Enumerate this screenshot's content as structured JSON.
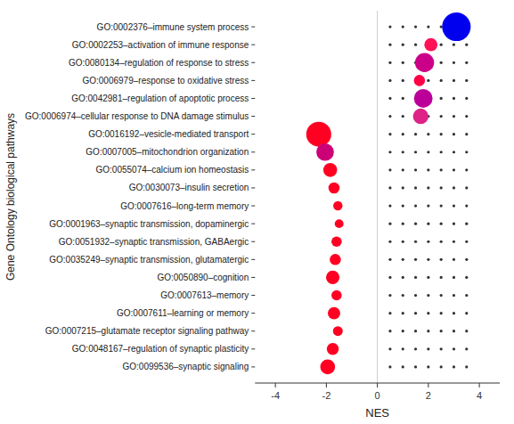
{
  "chart_data": {
    "type": "bubble",
    "orientation": "horizontal",
    "categories": [
      "GO:0002376–immune system process",
      "GO:0002253–activation of immune response",
      "GO:0080134–regulation of response to stress",
      "GO:0006979–response to oxidative stress",
      "GO:0042981–regulation of apoptotic process",
      "GO:0006974–cellular response to DNA damage stimulus",
      "GO:0016192–vesicle-mediated transport",
      "GO:0007005–mitochondrion organization",
      "GO:0055074–calcium ion homeostasis",
      "GO:0030073–insulin secretion",
      "GO:0007616–long-term memory",
      "GO:0001963–synaptic transmission, dopaminergic",
      "GO:0051932–synaptic transmission, GABAergic",
      "GO:0035249–synaptic transmission, glutamatergic",
      "GO:0050890–cognition",
      "GO:0007613–memory",
      "GO:0007611–learning or memory",
      "GO:0007215–glutamate receptor signaling pathway",
      "GO:0048167–regulation of synaptic plasticity",
      "GO:0099536–synaptic signaling"
    ],
    "values": [
      3.1,
      2.1,
      1.85,
      1.65,
      1.8,
      1.7,
      -2.3,
      -2.05,
      -1.85,
      -1.7,
      -1.55,
      -1.5,
      -1.6,
      -1.65,
      -1.75,
      -1.6,
      -1.7,
      -1.55,
      -1.75,
      -1.95
    ],
    "sizes": [
      850,
      180,
      380,
      130,
      360,
      250,
      650,
      320,
      200,
      130,
      90,
      80,
      110,
      130,
      190,
      110,
      160,
      100,
      150,
      230
    ],
    "colors": [
      "#0000ee",
      "#ff1155",
      "#cc0088",
      "#ff0044",
      "#bb0099",
      "#dd2288",
      "#ff0022",
      "#cc0077",
      "#ff0022",
      "#ff0022",
      "#ff0022",
      "#ff0022",
      "#ff0022",
      "#ff0022",
      "#ff0022",
      "#ff0022",
      "#ff0022",
      "#ff0022",
      "#ff0022",
      "#ff0022"
    ],
    "small_dot_x": [
      0.5,
      1.0,
      1.5,
      2.0,
      2.5,
      3.0,
      3.5
    ],
    "small_dot_color": "#333333",
    "reference_x": 0,
    "xlabel": "NES",
    "ylabel": "Gene Ontology biological pathways",
    "xlim": [
      -4.8,
      4.8
    ],
    "xticks": [
      -4,
      -2,
      0,
      2,
      4
    ],
    "grid": false
  }
}
